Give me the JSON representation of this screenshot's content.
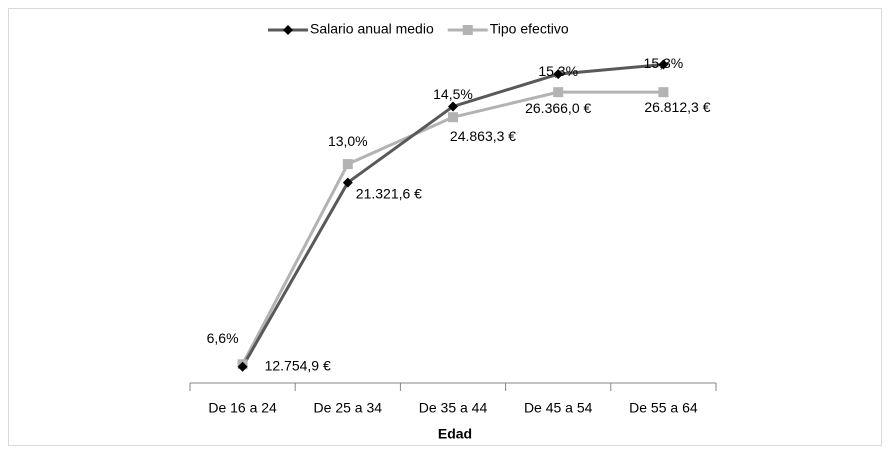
{
  "chart_data": {
    "type": "line",
    "x_label": "Edad",
    "categories": [
      "De 16 a 24",
      "De 25 a 34",
      "De 35 a 44",
      "De 45 a 54",
      "De 55 a 64"
    ],
    "series": [
      {
        "name": "Salario anual medio",
        "color": "#595959",
        "marker": "diamond",
        "values": [
          12754.9,
          21321.6,
          24863.3,
          26366.0,
          26812.3
        ],
        "value_labels": [
          "12.754,9 €",
          "21.321,6 €",
          "24.863,3 €",
          "26.366,0 €",
          "26.812,3 €"
        ]
      },
      {
        "name": "Tipo efectivo",
        "color": "#b3b3b3",
        "marker": "square",
        "axis": "y2",
        "values": [
          6.6,
          13.0,
          14.5,
          15.3,
          15.3
        ],
        "value_labels": [
          "6,6%",
          "13,0%",
          "14,5%",
          "15,3%",
          "15,3%"
        ]
      }
    ],
    "ylim": [
      12000,
      28000
    ],
    "y2lim": [
      6,
      17
    ],
    "legend": "top"
  }
}
